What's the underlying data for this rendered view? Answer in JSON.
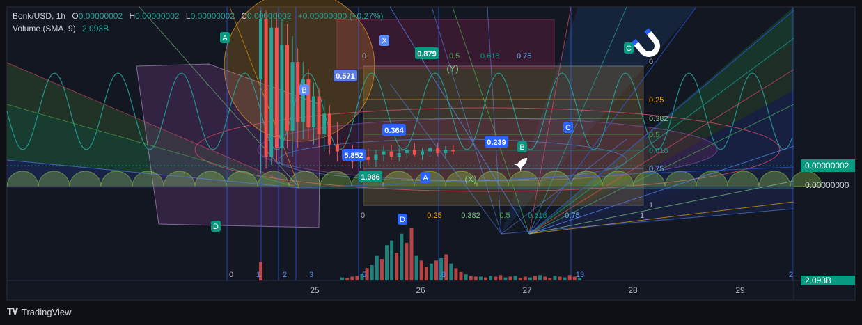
{
  "legend": {
    "symbol": "Bonk/USD, 1h",
    "o_label": "O",
    "o_value": "0.00000002",
    "h_label": "H",
    "h_value": "0.00000002",
    "l_label": "L",
    "l_value": "0.00000002",
    "c_label": "C",
    "c_value": "0.00000002",
    "change": "+0.00000000 (+0.27%)",
    "volume_label": "Volume (SMA, 9)",
    "volume_value": "2.093B"
  },
  "price_axis": {
    "last_price_tag": "0.00000002",
    "ref_price": "0.00000000",
    "volume_tag": "2.093B",
    "accent_color": "#089981"
  },
  "footer": {
    "brand": "TradingView"
  },
  "chart_data": {
    "type": "candlestick",
    "x_ticks": [
      "25",
      "26",
      "27",
      "28",
      "29"
    ],
    "fib_levels": [
      "0",
      "0.25",
      "0.382",
      "0.5",
      "0.618",
      "0.75",
      "1"
    ],
    "fib_time_zones": [
      "0",
      "1",
      "2",
      "3",
      "5",
      "8",
      "13",
      "2"
    ],
    "wave_labels": [
      "A",
      "B",
      "C",
      "D",
      "X",
      "A",
      "B",
      "C",
      "D",
      "(Y)",
      "(X)"
    ],
    "value_badges": [
      "0.879",
      "0.571",
      "0.364",
      "0.239",
      "5.852",
      "1.986"
    ],
    "volume_bars_colors": {
      "up": "#26a69a",
      "down": "#ef5350"
    },
    "volume_values": [
      2.4,
      0.4,
      0.3,
      0.5,
      0.6,
      0.9,
      1.6,
      2.0,
      3.2,
      2.8,
      4.6,
      5.2,
      3.6,
      6.1,
      4.9,
      6.8,
      3.2,
      2.6,
      1.8,
      2.2,
      2.6,
      2.9,
      3.4,
      2.2,
      1.6,
      1.1,
      0.8,
      0.6,
      0.5,
      0.5,
      0.4,
      0.6,
      0.5,
      0.7,
      0.4,
      0.5,
      0.6,
      0.3,
      0.5,
      0.4,
      0.6,
      0.7,
      0.5,
      0.3,
      0.6,
      0.5,
      0.4,
      0.7,
      0.5,
      0.3
    ],
    "volume_up": [
      false,
      true,
      false,
      false,
      false,
      true,
      false,
      true,
      true,
      false,
      true,
      true,
      false,
      true,
      false,
      false,
      true,
      false,
      false,
      true,
      false,
      true,
      false,
      true,
      false,
      false,
      true,
      false,
      false,
      true,
      false,
      true,
      false,
      false,
      true,
      false,
      true,
      false,
      false,
      true,
      false,
      true,
      false,
      false,
      true,
      false,
      true,
      false,
      false,
      true
    ],
    "candles": [
      {
        "o": 0.6,
        "h": 1.0,
        "l": 0.05,
        "c": 0.95
      },
      {
        "o": 0.95,
        "h": 1.0,
        "l": 0.08,
        "c": 0.15
      },
      {
        "o": 0.15,
        "h": 0.98,
        "l": 0.1,
        "c": 0.9
      },
      {
        "o": 0.9,
        "h": 0.99,
        "l": 0.12,
        "c": 0.2
      },
      {
        "o": 0.2,
        "h": 0.95,
        "l": 0.1,
        "c": 0.8
      },
      {
        "o": 0.8,
        "h": 0.92,
        "l": 0.2,
        "c": 0.3
      },
      {
        "o": 0.3,
        "h": 0.85,
        "l": 0.15,
        "c": 0.7
      },
      {
        "o": 0.7,
        "h": 0.78,
        "l": 0.2,
        "c": 0.35
      },
      {
        "o": 0.35,
        "h": 0.7,
        "l": 0.25,
        "c": 0.6
      },
      {
        "o": 0.6,
        "h": 0.66,
        "l": 0.25,
        "c": 0.32
      },
      {
        "o": 0.32,
        "h": 0.58,
        "l": 0.22,
        "c": 0.5
      },
      {
        "o": 0.5,
        "h": 0.55,
        "l": 0.2,
        "c": 0.28
      },
      {
        "o": 0.28,
        "h": 0.48,
        "l": 0.18,
        "c": 0.4
      },
      {
        "o": 0.4,
        "h": 0.45,
        "l": 0.16,
        "c": 0.22
      },
      {
        "o": 0.22,
        "h": 0.35,
        "l": 0.12,
        "c": 0.18
      },
      {
        "o": 0.18,
        "h": 0.26,
        "l": 0.1,
        "c": 0.14
      },
      {
        "o": 0.14,
        "h": 0.22,
        "l": 0.08,
        "c": 0.12
      },
      {
        "o": 0.12,
        "h": 0.18,
        "l": 0.08,
        "c": 0.15
      },
      {
        "o": 0.15,
        "h": 0.2,
        "l": 0.1,
        "c": 0.13
      },
      {
        "o": 0.13,
        "h": 0.19,
        "l": 0.09,
        "c": 0.16
      },
      {
        "o": 0.16,
        "h": 0.21,
        "l": 0.12,
        "c": 0.18
      },
      {
        "o": 0.18,
        "h": 0.22,
        "l": 0.13,
        "c": 0.15
      },
      {
        "o": 0.15,
        "h": 0.2,
        "l": 0.12,
        "c": 0.17
      },
      {
        "o": 0.17,
        "h": 0.22,
        "l": 0.14,
        "c": 0.19
      },
      {
        "o": 0.19,
        "h": 0.23,
        "l": 0.15,
        "c": 0.16
      },
      {
        "o": 0.16,
        "h": 0.2,
        "l": 0.13,
        "c": 0.18
      },
      {
        "o": 0.18,
        "h": 0.22,
        "l": 0.15,
        "c": 0.2
      },
      {
        "o": 0.2,
        "h": 0.23,
        "l": 0.15,
        "c": 0.17
      },
      {
        "o": 0.17,
        "h": 0.21,
        "l": 0.14,
        "c": 0.19
      },
      {
        "o": 0.19,
        "h": 0.22,
        "l": 0.16,
        "c": 0.18
      }
    ]
  }
}
